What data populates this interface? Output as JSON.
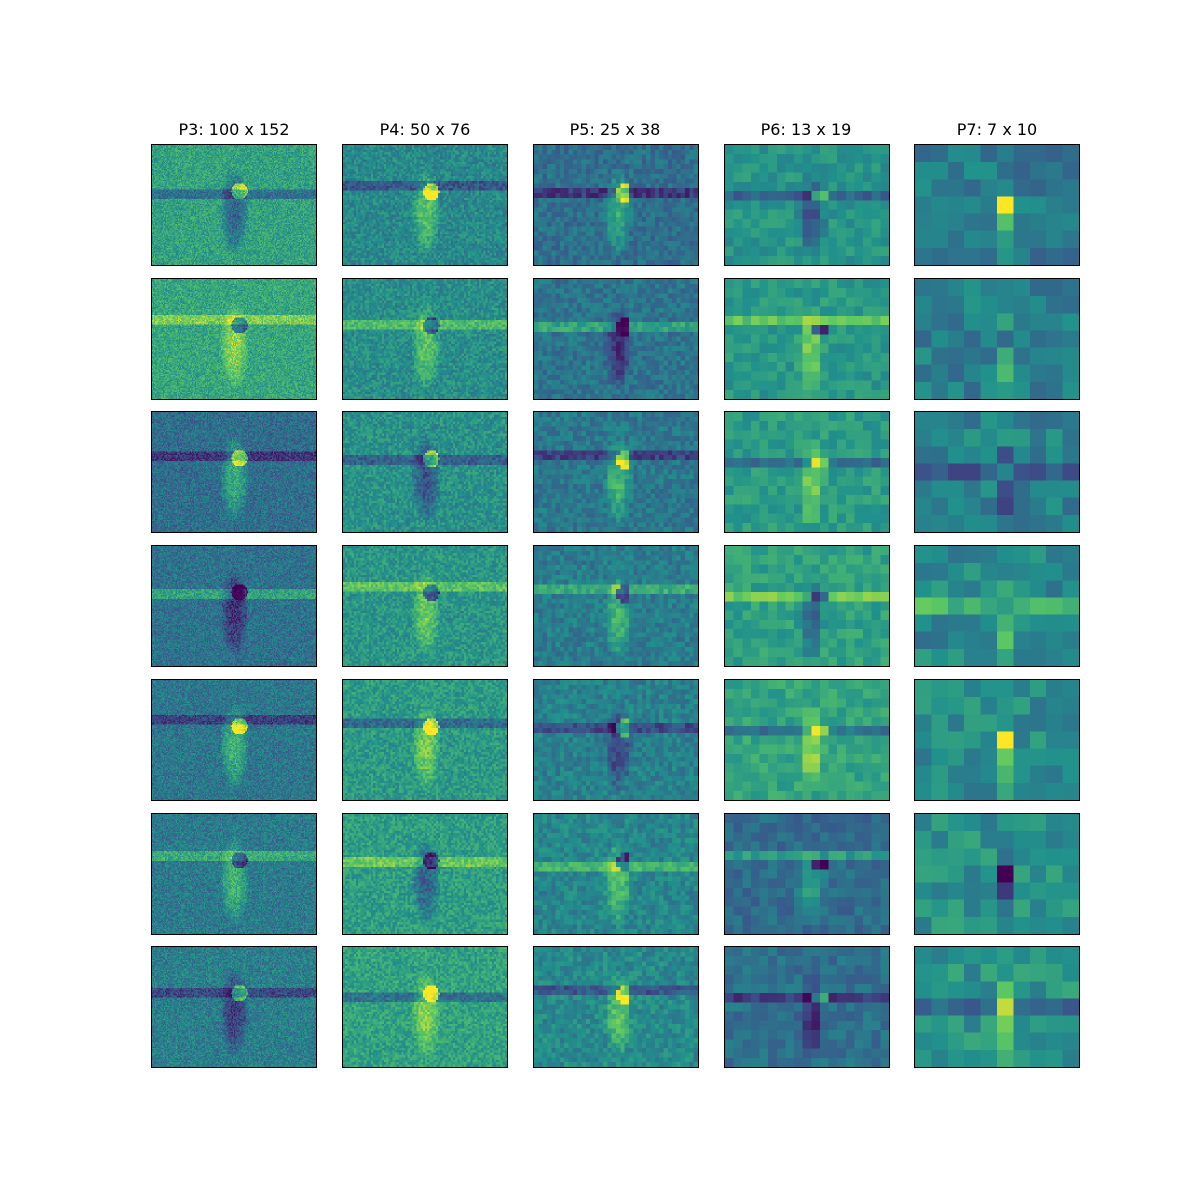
{
  "figure": {
    "columns": [
      {
        "title": "P3: 100 x 152",
        "grid_rows": 100,
        "grid_cols": 152
      },
      {
        "title": "P4: 50 x 76",
        "grid_rows": 50,
        "grid_cols": 76
      },
      {
        "title": "P5: 25 x 38",
        "grid_rows": 25,
        "grid_cols": 38
      },
      {
        "title": "P6: 13 x 19",
        "grid_rows": 13,
        "grid_cols": 19
      },
      {
        "title": "P7: 7 x 10",
        "grid_rows": 7,
        "grid_cols": 10
      }
    ],
    "rows": 7,
    "colormap": "viridis",
    "colormap_stops": [
      "#440154",
      "#3b528b",
      "#21918c",
      "#5ec962",
      "#fde725"
    ]
  }
}
